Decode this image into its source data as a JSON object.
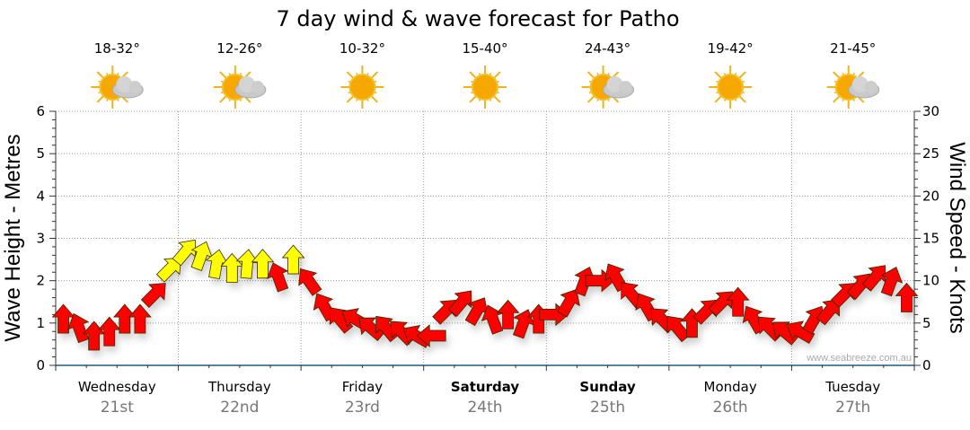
{
  "chart_data": {
    "type": "scatter",
    "title": "7 day wind & wave forecast for Patho",
    "ylabel": "Wave Height - Metres",
    "y2label": "Wind Speed - Knots",
    "ylim": [
      0,
      6
    ],
    "y2lim": [
      0,
      30
    ],
    "yticks": [
      "0",
      "1",
      "2",
      "3",
      "4",
      "5",
      "6"
    ],
    "y2ticks": [
      "0",
      "5",
      "10",
      "15",
      "20",
      "25",
      "30"
    ],
    "grid": true,
    "watermark": "www.seabreeze.com.au",
    "days": [
      {
        "name": "Wednesday",
        "date": "21st",
        "temp": "18-32°",
        "icon": "partly-cloudy-icon",
        "bold": false
      },
      {
        "name": "Thursday",
        "date": "22nd",
        "temp": "12-26°",
        "icon": "partly-cloudy-icon",
        "bold": false
      },
      {
        "name": "Friday",
        "date": "23rd",
        "temp": "10-32°",
        "icon": "sunny-icon",
        "bold": false
      },
      {
        "name": "Saturday",
        "date": "24th",
        "temp": "15-40°",
        "icon": "sunny-icon",
        "bold": true
      },
      {
        "name": "Sunday",
        "date": "25th",
        "temp": "24-43°",
        "icon": "partly-cloudy-icon",
        "bold": true
      },
      {
        "name": "Monday",
        "date": "26th",
        "temp": "19-42°",
        "icon": "sunny-icon",
        "bold": false
      },
      {
        "name": "Tuesday",
        "date": "27th",
        "temp": "21-45°",
        "icon": "partly-cloudy-icon",
        "bold": false
      }
    ],
    "wind_interval_hours": 3,
    "wind_knots": [
      5.5,
      4.5,
      3.5,
      4,
      5.5,
      5.5,
      8.5,
      11.5,
      13.5,
      13,
      12,
      11.5,
      12,
      12,
      10.5,
      12.5,
      10,
      7,
      5.5,
      5.5,
      4.5,
      4.5,
      4,
      3.5,
      3.5,
      6.5,
      7.5,
      6.5,
      5.5,
      6,
      5,
      5.5,
      6,
      7.5,
      10,
      10,
      10.5,
      8.5,
      7,
      5.5,
      4.5,
      5,
      6.5,
      7.5,
      7.5,
      5.5,
      4.5,
      4,
      4,
      5.5,
      6.5,
      8.5,
      9.5,
      10.5,
      10,
      8
    ],
    "wind_direction_deg": [
      0,
      -20,
      0,
      0,
      0,
      0,
      45,
      45,
      40,
      20,
      10,
      0,
      5,
      0,
      -20,
      0,
      -35,
      -30,
      -40,
      -60,
      -50,
      -40,
      -45,
      -60,
      -90,
      45,
      40,
      30,
      -20,
      0,
      20,
      0,
      90,
      30,
      20,
      90,
      -30,
      -40,
      -30,
      -45,
      -40,
      0,
      45,
      45,
      0,
      -30,
      -45,
      -50,
      -60,
      30,
      40,
      45,
      40,
      40,
      20,
      0
    ],
    "wind_color": [
      "red",
      "red",
      "red",
      "red",
      "red",
      "red",
      "red",
      "yellow",
      "yellow",
      "yellow",
      "yellow",
      "yellow",
      "yellow",
      "yellow",
      "red",
      "yellow",
      "red",
      "red",
      "red",
      "red",
      "red",
      "red",
      "red",
      "red",
      "red",
      "red",
      "red",
      "red",
      "red",
      "red",
      "red",
      "red",
      "red",
      "red",
      "red",
      "red",
      "red",
      "red",
      "red",
      "red",
      "red",
      "red",
      "red",
      "red",
      "red",
      "red",
      "red",
      "red",
      "red",
      "red",
      "red",
      "red",
      "red",
      "red",
      "red",
      "red"
    ],
    "colors": {
      "red": "#ff0000",
      "yellow": "#ffff00",
      "axis": "#1f5a80"
    }
  }
}
